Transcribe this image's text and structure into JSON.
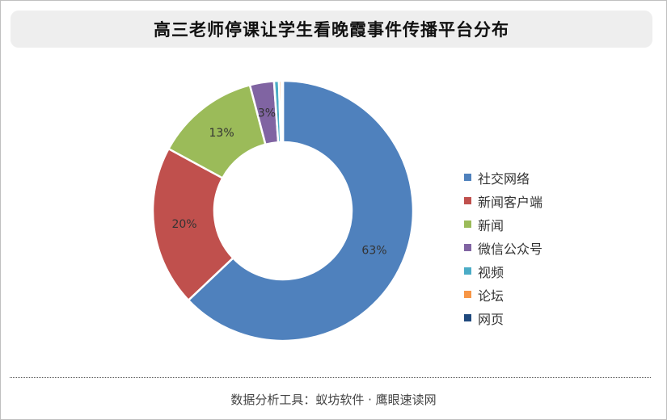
{
  "title": "高三老师停课让学生看晚霞事件传播平台分布",
  "footer": "数据分析工具：蚁坊软件 · 鹰眼速读网",
  "chart_data": {
    "type": "pie",
    "variant": "donut",
    "title": "高三老师停课让学生看晚霞事件传播平台分布",
    "legend_position": "right",
    "categories": [
      "社交网络",
      "新闻客户端",
      "新闻",
      "微信公众号",
      "视频",
      "论坛",
      "网页"
    ],
    "values": [
      63,
      20,
      13,
      3,
      0.6,
      0.3,
      0.2
    ],
    "labels": [
      "63%",
      "20%",
      "13%",
      "3%",
      "",
      "",
      ""
    ],
    "colors": [
      "#4f81bd",
      "#c0504d",
      "#9bbb59",
      "#8064a2",
      "#4bacc6",
      "#f79646",
      "#1f497d"
    ]
  }
}
